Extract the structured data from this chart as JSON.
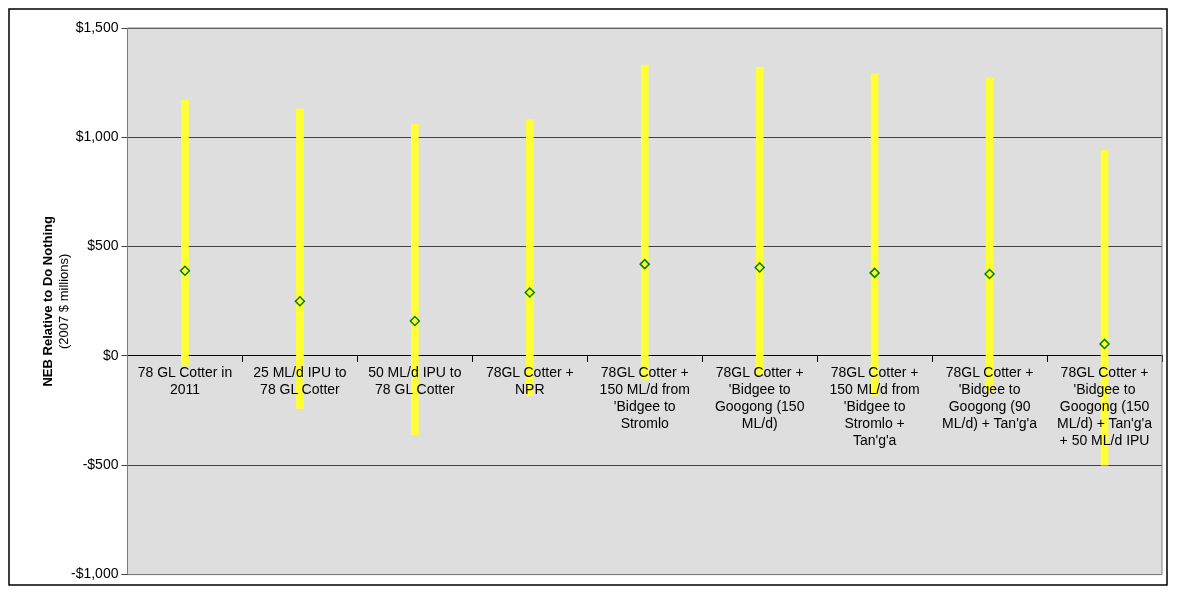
{
  "chart_data": {
    "type": "bar",
    "ylabel": "NEB Relative to Do Nothing\n(2007 $ millions)",
    "categories": [
      "78 GL Cotter in 2011",
      "25 ML/d IPU to 78 GL Cotter",
      "50 ML/d IPU to 78 GL Cotter",
      "78GL Cotter + NPR",
      "78GL Cotter + 150 ML/d from 'Bidgee to Stromlo",
      "78GL Cotter + 'Bidgee to Googong (150 ML/d)",
      "78GL Cotter + 150 ML/d from 'Bidgee to Stromlo + Tan'g'a",
      "78GL Cotter + 'Bidgee to Googong (90 ML/d) + Tan'g'a",
      "78GL Cotter + 'Bidgee to Googong (150 ML/d) + Tan'g'a + 50 ML/d IPU"
    ],
    "series": [
      {
        "color": "#ffff33",
        "base": [
          -45,
          -240,
          -360,
          -180,
          -110,
          -85,
          -180,
          -165,
          -500
        ],
        "values": [
          1215,
          1370,
          1420,
          1260,
          1440,
          1405,
          1470,
          1435,
          1440
        ]
      },
      {
        "type": "scatter",
        "color": "#ffff33",
        "marker": "diamond",
        "values": [
          390,
          250,
          160,
          290,
          420,
          405,
          380,
          375,
          55
        ]
      }
    ],
    "ylim": [
      -1000,
      1500
    ],
    "yticks": [
      {
        "value": -1000,
        "label": "-$1,000"
      },
      {
        "value": -500,
        "label": "-$500"
      },
      {
        "value": 0,
        "label": "$0"
      },
      {
        "value": 500,
        "label": "$500"
      },
      {
        "value": 1000,
        "label": "$1,000"
      },
      {
        "value": 1500,
        "label": "$1,500"
      }
    ],
    "grid": "y",
    "legend": false
  }
}
